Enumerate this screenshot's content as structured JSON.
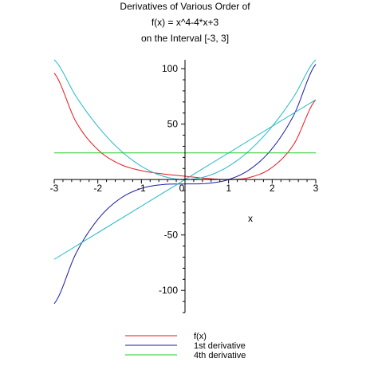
{
  "chart_data": {
    "type": "line",
    "title_lines": [
      "Derivatives of Various Order of",
      "f(x) = x^4-4*x+3",
      "on the Interval [-3, 3]"
    ],
    "xlabel": "x",
    "ylabel": "",
    "xlim": [
      -3,
      3
    ],
    "ylim": [
      -120,
      108
    ],
    "x_ticks": [
      -3,
      -2,
      -1,
      0,
      1,
      2,
      3
    ],
    "y_ticks": [
      -100,
      -50,
      50,
      100
    ],
    "grid": false,
    "legend_position": "bottom",
    "series": [
      {
        "name": "f(x)",
        "color": "#e8161c",
        "in_legend": true,
        "x": [
          -3,
          -2.5,
          -2,
          -1.5,
          -1,
          -0.5,
          0,
          0.5,
          1,
          1.5,
          2,
          2.5,
          3
        ],
        "values": [
          96,
          52.06,
          27,
          14.06,
          8,
          5.06,
          3,
          1.06,
          0,
          2.06,
          11,
          32.06,
          72
        ]
      },
      {
        "name": "1st derivative",
        "color": "#1a1aa6",
        "in_legend": true,
        "x": [
          -3,
          -2.5,
          -2,
          -1.5,
          -1,
          -0.5,
          0,
          0.5,
          1,
          1.5,
          2,
          2.5,
          3
        ],
        "values": [
          -112,
          -66.5,
          -36,
          -17.5,
          -8,
          -4.5,
          -4,
          -3.5,
          0,
          9.5,
          28,
          58.5,
          104
        ]
      },
      {
        "name": "",
        "color": "#20b8c8",
        "in_legend": false,
        "x": [
          -3,
          -2.5,
          -2,
          -1.5,
          -1,
          -0.5,
          0,
          0.5,
          1,
          1.5,
          2,
          2.5,
          3
        ],
        "values": [
          108,
          75,
          48,
          27,
          12,
          3,
          0,
          3,
          12,
          27,
          48,
          75,
          108
        ]
      },
      {
        "name": "",
        "color": "#20b8c8",
        "in_legend": false,
        "x": [
          -3,
          3
        ],
        "values": [
          -72,
          72
        ]
      },
      {
        "name": "4th derivative",
        "color": "#22cc22",
        "in_legend": true,
        "x": [
          -3,
          3
        ],
        "values": [
          24,
          24
        ]
      }
    ]
  }
}
